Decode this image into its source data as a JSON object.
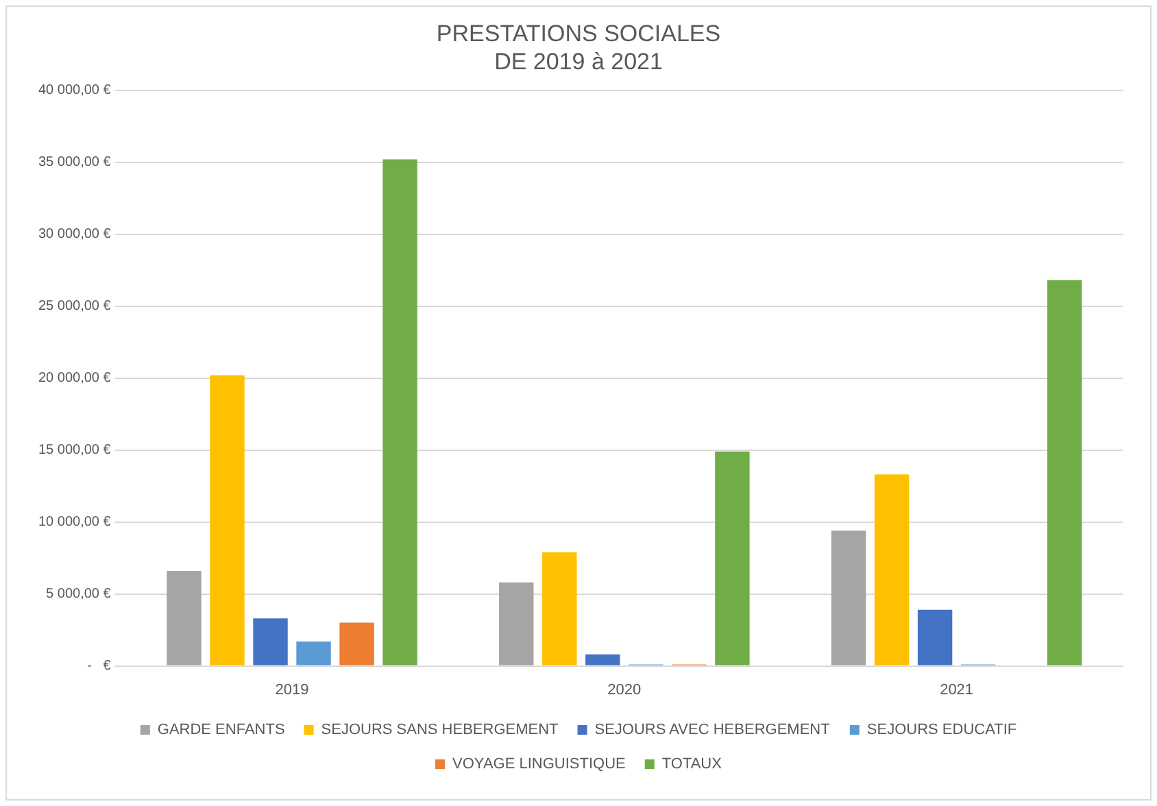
{
  "chart_data": {
    "type": "bar",
    "title": [
      "PRESTATIONS SOCIALES",
      "DE 2019 à 2021"
    ],
    "categories": [
      "2019",
      "2020",
      "2021"
    ],
    "series": [
      {
        "name": "GARDE ENFANTS",
        "color": "#a5a5a5",
        "values": [
          6600,
          5800,
          9400
        ]
      },
      {
        "name": "SEJOURS SANS HEBERGEMENT",
        "color": "#ffc000",
        "values": [
          20200,
          7900,
          13300
        ]
      },
      {
        "name": "SEJOURS AVEC HEBERGEMENT",
        "color": "#4472c4",
        "values": [
          3300,
          800,
          3900
        ]
      },
      {
        "name": "SEJOURS EDUCATIF",
        "color": "#5b9bd5",
        "values": [
          1700,
          100,
          100
        ]
      },
      {
        "name": "VOYAGE LINGUISTIQUE",
        "color": "#ed7d31",
        "values": [
          3000,
          100,
          0
        ]
      },
      {
        "name": "TOTAUX",
        "color": "#70ad47",
        "values": [
          35200,
          14900,
          26800
        ]
      }
    ],
    "ylim": [
      0,
      40000
    ],
    "yticks": [
      {
        "value": 0,
        "label": "-   €"
      },
      {
        "value": 5000,
        "label": "5 000,00 €"
      },
      {
        "value": 10000,
        "label": "10 000,00 €"
      },
      {
        "value": 15000,
        "label": "15 000,00 €"
      },
      {
        "value": 20000,
        "label": "20 000,00 €"
      },
      {
        "value": 25000,
        "label": "25 000,00 €"
      },
      {
        "value": 30000,
        "label": "30 000,00 €"
      },
      {
        "value": 35000,
        "label": "35 000,00 €"
      },
      {
        "value": 40000,
        "label": "40 000,00 €"
      }
    ],
    "grid": "y",
    "legend": "bottom"
  }
}
